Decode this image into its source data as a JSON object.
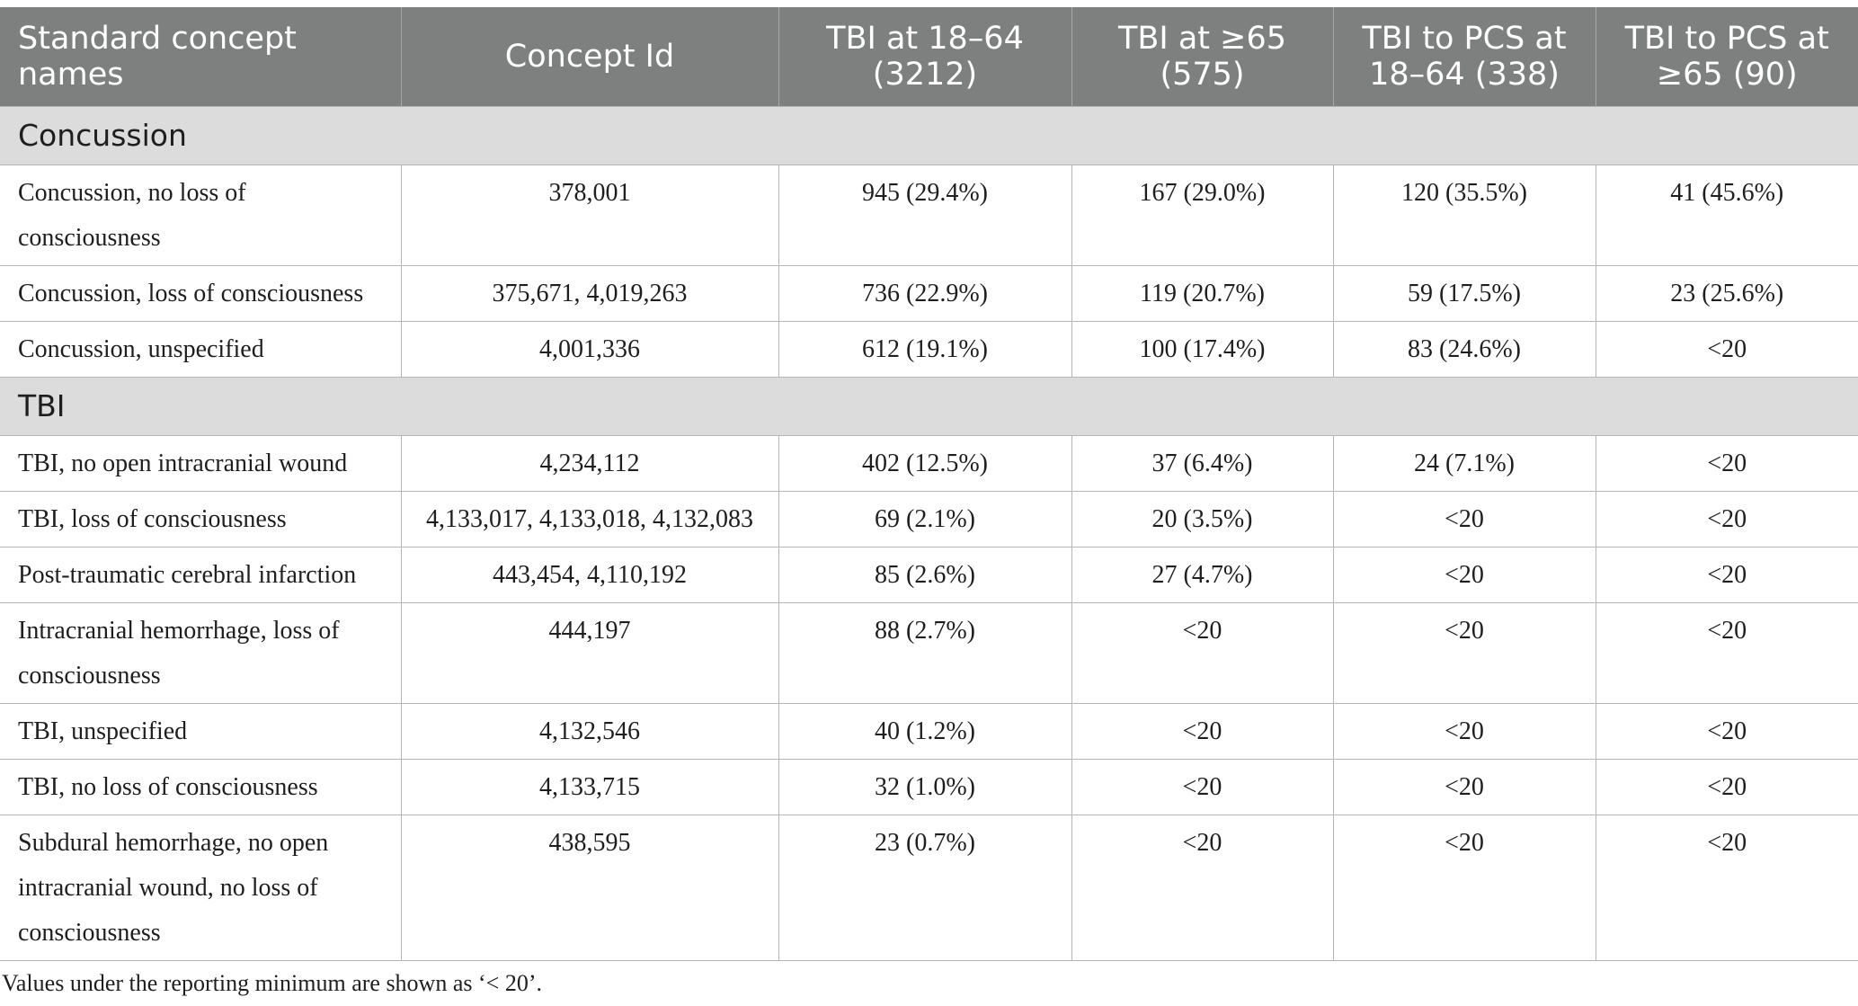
{
  "table": {
    "headers": [
      "Standard concept names",
      "Concept Id",
      "TBI at 18–64 (3212)",
      "TBI at ≥65 (575)",
      "TBI to PCS at 18–64 (338)",
      "TBI to PCS at ≥65 (90)"
    ],
    "groups": [
      {
        "label": "Concussion",
        "rows": [
          [
            "Concussion, no loss of consciousness",
            "378,001",
            "945 (29.4%)",
            "167 (29.0%)",
            "120 (35.5%)",
            "41 (45.6%)"
          ],
          [
            "Concussion, loss of consciousness",
            "375,671, 4,019,263",
            "736 (22.9%)",
            "119 (20.7%)",
            "59 (17.5%)",
            "23 (25.6%)"
          ],
          [
            "Concussion, unspecified",
            "4,001,336",
            "612 (19.1%)",
            "100 (17.4%)",
            "83 (24.6%)",
            "<20"
          ]
        ]
      },
      {
        "label": "TBI",
        "rows": [
          [
            "TBI, no open intracranial wound",
            "4,234,112",
            "402 (12.5%)",
            "37 (6.4%)",
            "24 (7.1%)",
            "<20"
          ],
          [
            "TBI, loss of consciousness",
            "4,133,017, 4,133,018, 4,132,083",
            "69 (2.1%)",
            "20 (3.5%)",
            "<20",
            "<20"
          ],
          [
            "Post-traumatic cerebral infarction",
            "443,454, 4,110,192",
            "85 (2.6%)",
            "27 (4.7%)",
            "<20",
            "<20"
          ],
          [
            "Intracranial hemorrhage, loss of consciousness",
            "444,197",
            "88 (2.7%)",
            "<20",
            "<20",
            "<20"
          ],
          [
            "TBI, unspecified",
            "4,132,546",
            "40 (1.2%)",
            "<20",
            "<20",
            "<20"
          ],
          [
            "TBI, no loss of consciousness",
            "4,133,715",
            "32 (1.0%)",
            "<20",
            "<20",
            "<20"
          ],
          [
            "Subdural hemorrhage, no open intracranial wound, no loss of consciousness",
            "438,595",
            "23 (0.7%)",
            "<20",
            "<20",
            "<20"
          ]
        ]
      }
    ]
  },
  "footnote": "Values under the reporting minimum are shown as ‘< 20’."
}
